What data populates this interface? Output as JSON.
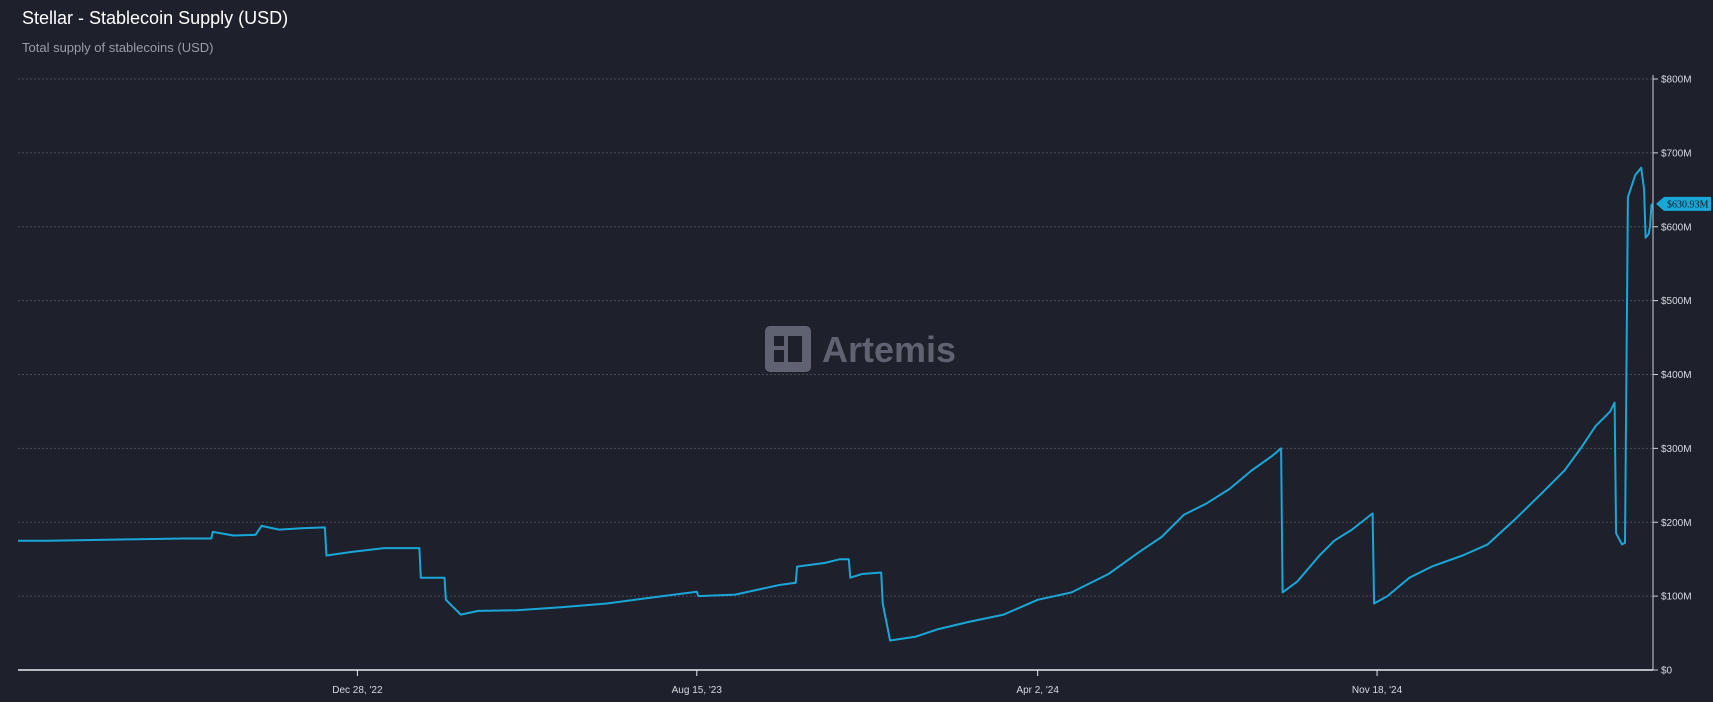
{
  "title": "Stellar - Stablecoin Supply (USD)",
  "subtitle": "Total supply of stablecoins (USD)",
  "watermark": "Artemis",
  "colors": {
    "line": "#19a7d8",
    "background": "#1e202b",
    "grid": "#4a4d58"
  },
  "chart_data": {
    "type": "line",
    "title": "Stellar - Stablecoin Supply (USD)",
    "subtitle": "Total supply of stablecoins (USD)",
    "y_unit": "USD millions",
    "ylim": [
      0,
      800
    ],
    "y_ticks": [
      0,
      100,
      200,
      300,
      400,
      500,
      600,
      700,
      800
    ],
    "y_tick_labels": [
      "$0",
      "$100M",
      "$200M",
      "$300M",
      "$400M",
      "$500M",
      "$600M",
      "$700M",
      "$800M"
    ],
    "x_tick_labels": [
      "Dec 28, '22",
      "Aug 15, '23",
      "Apr 2, '24",
      "Nov 18, '24"
    ],
    "x_tick_dates": [
      "2022-12-28",
      "2023-08-15",
      "2024-04-02",
      "2024-11-18"
    ],
    "xlim": [
      "2022-05-12",
      "2025-05-24"
    ],
    "grid": true,
    "last_value_label": "$630.93M",
    "series": [
      {
        "values": [
          [
            "2022-05-12",
            175
          ],
          [
            "2022-06-01",
            175
          ],
          [
            "2022-07-01",
            176
          ],
          [
            "2022-08-01",
            177
          ],
          [
            "2022-09-01",
            178
          ],
          [
            "2022-09-20",
            178
          ],
          [
            "2022-09-21",
            187
          ],
          [
            "2022-10-05",
            182
          ],
          [
            "2022-10-20",
            183
          ],
          [
            "2022-10-24",
            195
          ],
          [
            "2022-11-05",
            190
          ],
          [
            "2022-11-20",
            192
          ],
          [
            "2022-12-06",
            193
          ],
          [
            "2022-12-07",
            155
          ],
          [
            "2022-12-25",
            160
          ],
          [
            "2023-01-15",
            165
          ],
          [
            "2023-02-08",
            165
          ],
          [
            "2023-02-09",
            125
          ],
          [
            "2023-02-25",
            125
          ],
          [
            "2023-02-26",
            95
          ],
          [
            "2023-03-08",
            75
          ],
          [
            "2023-03-20",
            80
          ],
          [
            "2023-04-15",
            81
          ],
          [
            "2023-05-15",
            85
          ],
          [
            "2023-06-15",
            90
          ],
          [
            "2023-07-15",
            98
          ],
          [
            "2023-08-15",
            106
          ],
          [
            "2023-08-16",
            100
          ],
          [
            "2023-09-10",
            102
          ],
          [
            "2023-10-10",
            115
          ],
          [
            "2023-10-21",
            118
          ],
          [
            "2023-10-22",
            140
          ],
          [
            "2023-11-10",
            145
          ],
          [
            "2023-11-20",
            150
          ],
          [
            "2023-11-26",
            150
          ],
          [
            "2023-11-27",
            125
          ],
          [
            "2023-12-05",
            130
          ],
          [
            "2023-12-18",
            132
          ],
          [
            "2023-12-19",
            90
          ],
          [
            "2023-12-24",
            40
          ],
          [
            "2024-01-10",
            45
          ],
          [
            "2024-01-25",
            55
          ],
          [
            "2024-02-15",
            65
          ],
          [
            "2024-03-10",
            75
          ],
          [
            "2024-04-02",
            95
          ],
          [
            "2024-04-25",
            105
          ],
          [
            "2024-05-20",
            130
          ],
          [
            "2024-06-10",
            160
          ],
          [
            "2024-06-25",
            180
          ],
          [
            "2024-07-10",
            210
          ],
          [
            "2024-07-25",
            225
          ],
          [
            "2024-08-10",
            245
          ],
          [
            "2024-08-25",
            270
          ],
          [
            "2024-09-08",
            290
          ],
          [
            "2024-09-14",
            300
          ],
          [
            "2024-09-15",
            105
          ],
          [
            "2024-09-25",
            120
          ],
          [
            "2024-10-10",
            155
          ],
          [
            "2024-10-20",
            175
          ],
          [
            "2024-11-01",
            190
          ],
          [
            "2024-11-15",
            212
          ],
          [
            "2024-11-16",
            90
          ],
          [
            "2024-11-25",
            100
          ],
          [
            "2024-12-10",
            125
          ],
          [
            "2024-12-25",
            140
          ],
          [
            "2025-01-15",
            155
          ],
          [
            "2025-02-01",
            170
          ],
          [
            "2025-02-20",
            205
          ],
          [
            "2025-03-10",
            240
          ],
          [
            "2025-03-25",
            270
          ],
          [
            "2025-04-05",
            300
          ],
          [
            "2025-04-15",
            330
          ],
          [
            "2025-04-25",
            350
          ],
          [
            "2025-04-28",
            362
          ],
          [
            "2025-04-29",
            185
          ],
          [
            "2025-05-03",
            170
          ],
          [
            "2025-05-05",
            172
          ],
          [
            "2025-05-07",
            640
          ],
          [
            "2025-05-12",
            670
          ],
          [
            "2025-05-16",
            680
          ],
          [
            "2025-05-18",
            650
          ],
          [
            "2025-05-19",
            585
          ],
          [
            "2025-05-21",
            590
          ],
          [
            "2025-05-22",
            600
          ],
          [
            "2025-05-23",
            630
          ],
          [
            "2025-05-24",
            631
          ]
        ]
      }
    ]
  }
}
